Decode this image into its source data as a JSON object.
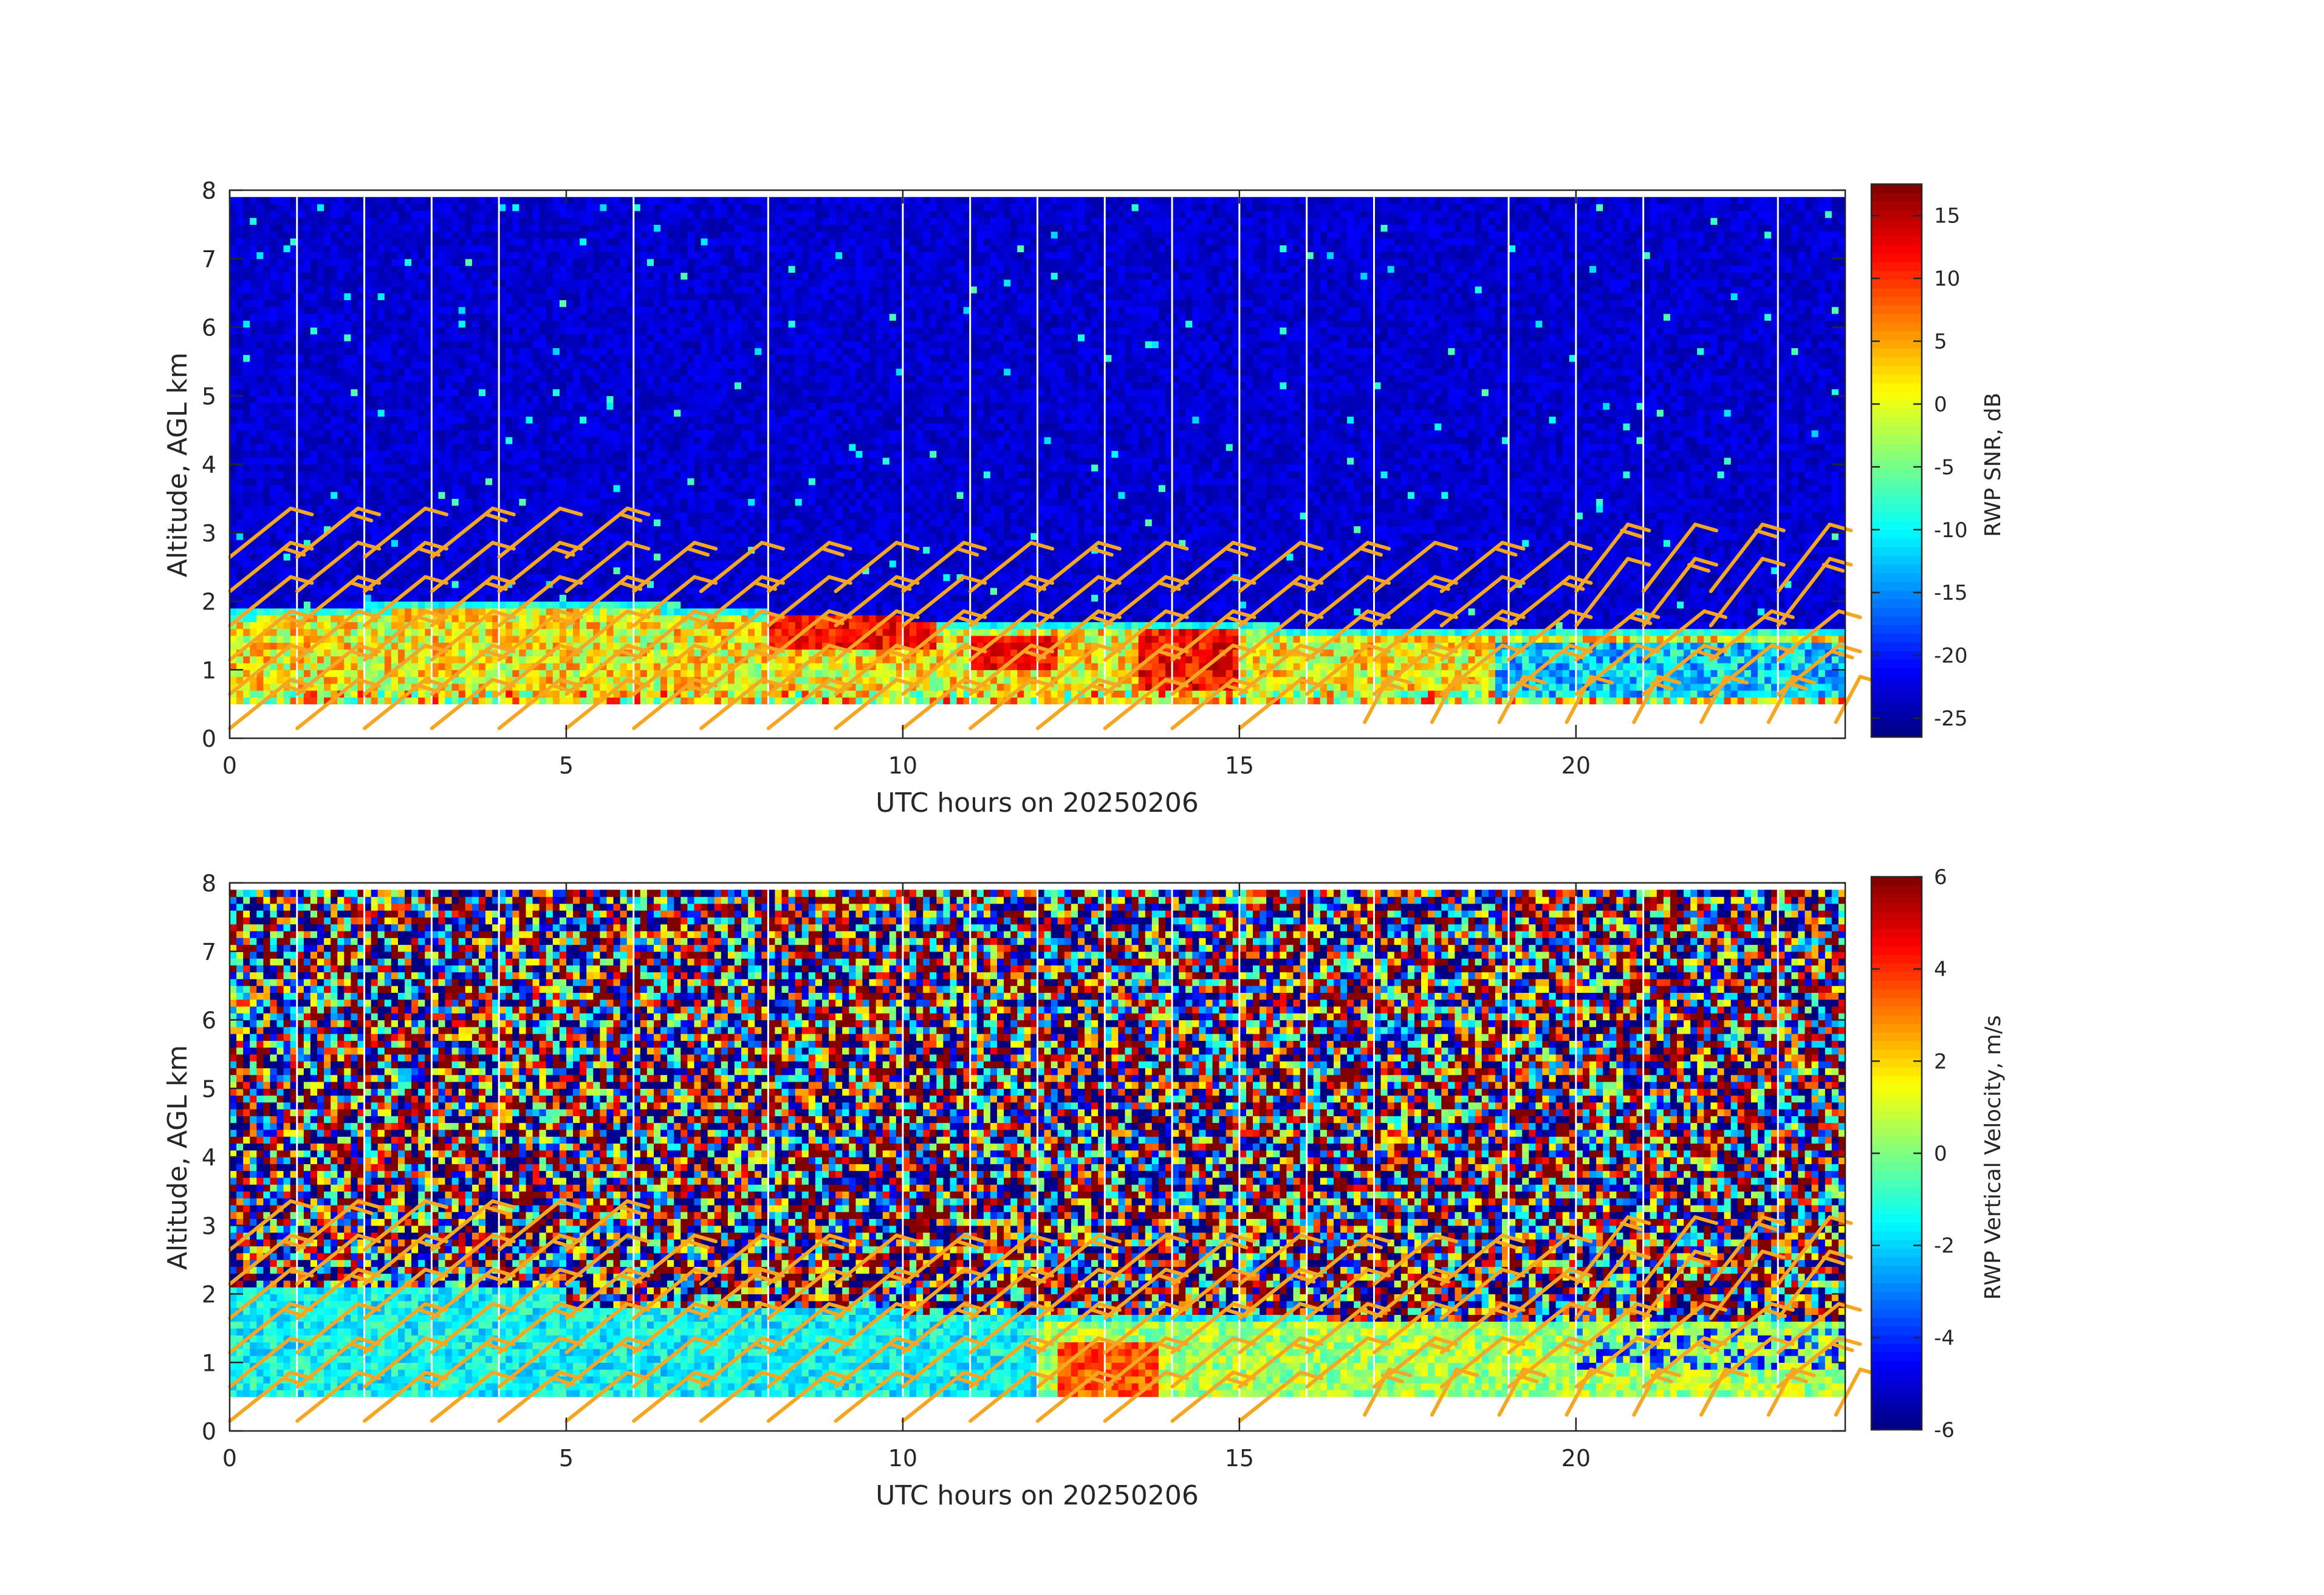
{
  "chart_data": [
    {
      "type": "heatmap",
      "title": "",
      "xlabel": "UTC hours on 20250206",
      "ylabel": "Altitude, AGL km",
      "xlim": [
        0,
        24
      ],
      "ylim": [
        0,
        8
      ],
      "xticks": [
        0,
        5,
        10,
        15,
        20
      ],
      "yticks": [
        0,
        1,
        2,
        3,
        4,
        5,
        6,
        7,
        8
      ],
      "grid": false,
      "data_range_km": [
        0.5,
        7.9
      ],
      "colormap": "jet",
      "colorbar": {
        "label": "RWP SNR, dB",
        "clim": [
          -26.5,
          17.5
        ],
        "ticks": [
          15,
          10,
          5,
          0,
          -5,
          -10,
          -15,
          -20,
          -25
        ]
      },
      "features": {
        "background_level_db": -23,
        "boundary_layer_top_km": [
          {
            "x": 0,
            "y": 1.85
          },
          {
            "x": 4,
            "y": 2.05
          },
          {
            "x": 6,
            "y": 2.0
          },
          {
            "x": 8,
            "y": 1.85
          },
          {
            "x": 10,
            "y": 1.75
          },
          {
            "x": 12,
            "y": 1.7
          },
          {
            "x": 15,
            "y": 1.7
          },
          {
            "x": 16.2,
            "y": 1.6
          },
          {
            "x": 24,
            "y": 1.6
          }
        ]
      },
      "data_gaps_hours": [
        1,
        2,
        3,
        4,
        6,
        8,
        10,
        11,
        12,
        13,
        14,
        15,
        16,
        17,
        19,
        20,
        21,
        23
      ]
    },
    {
      "type": "heatmap",
      "title": "",
      "xlabel": "UTC hours on 20250206",
      "ylabel": "Altitude, AGL km",
      "xlim": [
        0,
        24
      ],
      "ylim": [
        0,
        8
      ],
      "xticks": [
        0,
        5,
        10,
        15,
        20
      ],
      "yticks": [
        0,
        1,
        2,
        3,
        4,
        5,
        6,
        7,
        8
      ],
      "grid": false,
      "data_range_km": [
        0.5,
        7.9
      ],
      "colormap": "jet",
      "colorbar": {
        "label": "RWP Vertical Velocity, m/s",
        "clim": [
          -6,
          6
        ],
        "ticks": [
          6,
          4,
          2,
          0,
          -2,
          -4,
          -6
        ]
      },
      "features": {
        "boundary_layer_level_ms": -1.5,
        "upper_noise": "random -6 to 6",
        "updraft_patch": {
          "x": [
            12.3,
            13.8
          ],
          "y": [
            0.5,
            1.3
          ],
          "value_ms": 3.5
        }
      },
      "data_gaps_hours": [
        1,
        2,
        3,
        4,
        6,
        8,
        10,
        11,
        12,
        13,
        14,
        15,
        16,
        17,
        19,
        20,
        21,
        23
      ]
    }
  ],
  "wind_barbs": {
    "color": "#f5a623",
    "times_hours": [
      0.5,
      1.5,
      2.5,
      3.5,
      4.5,
      5.5,
      6.5,
      7.5,
      8.5,
      9.5,
      10.5,
      11.5,
      12.5,
      13.5,
      14.5,
      15.5,
      16.5,
      17.5,
      18.5,
      19.5,
      20.5,
      21.5,
      22.5,
      23.5
    ],
    "heights_km": [
      0.5,
      1.0,
      1.5,
      2.0,
      2.5,
      3.0
    ]
  }
}
